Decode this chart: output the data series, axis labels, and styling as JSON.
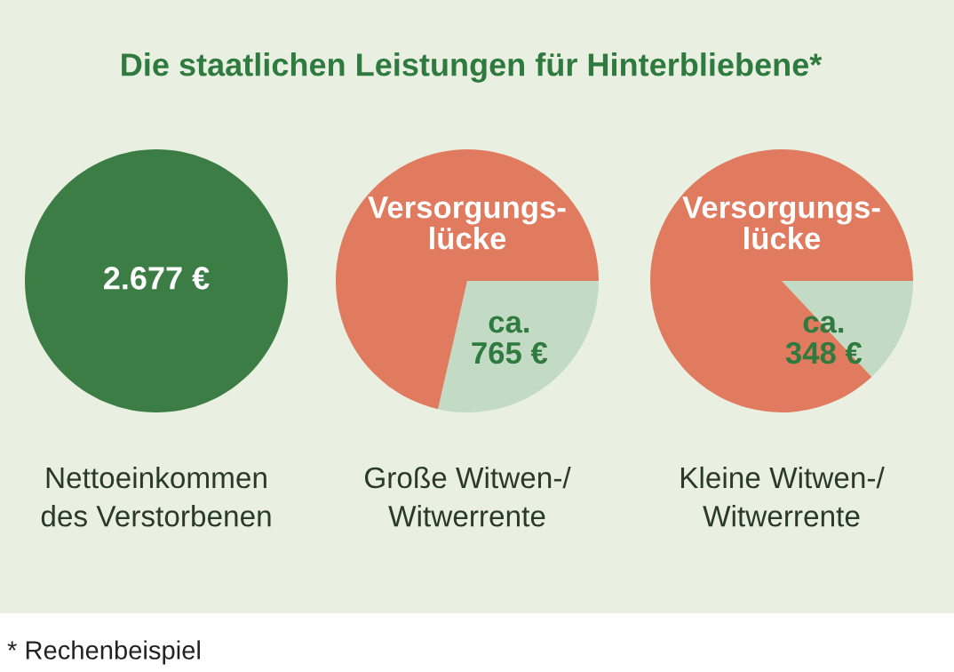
{
  "chart_data": [
    {
      "type": "pie",
      "title": "Die staatlichen Leistungen für Hinterbliebene*",
      "xlabel": "Nettoeinkommen\ndes Verstorbenen",
      "categories": [
        null
      ],
      "values": [
        2677
      ],
      "colors": [
        "#3b7d45"
      ],
      "value_labels": [
        "2.677 €"
      ]
    },
    {
      "type": "pie",
      "xlabel": "Große Witwen-/\nWitwerrente",
      "categories": [
        null,
        "Versorgungs-\nlücke"
      ],
      "values": [
        765,
        1912
      ],
      "colors": [
        "#c3dbc4",
        "#e07b5f"
      ],
      "value_labels": [
        "ca.\n765 €",
        null
      ]
    },
    {
      "type": "pie",
      "xlabel": "Kleine Witwen-/\nWitwerrente",
      "categories": [
        null,
        "Versorgungs-\nlücke"
      ],
      "values": [
        348,
        2329
      ],
      "colors": [
        "#c3dbc4",
        "#e07b5f"
      ],
      "value_labels": [
        "ca.\n348 €",
        null
      ],
      "annotations": [
        "* Rechenbeispiel"
      ]
    }
  ]
}
